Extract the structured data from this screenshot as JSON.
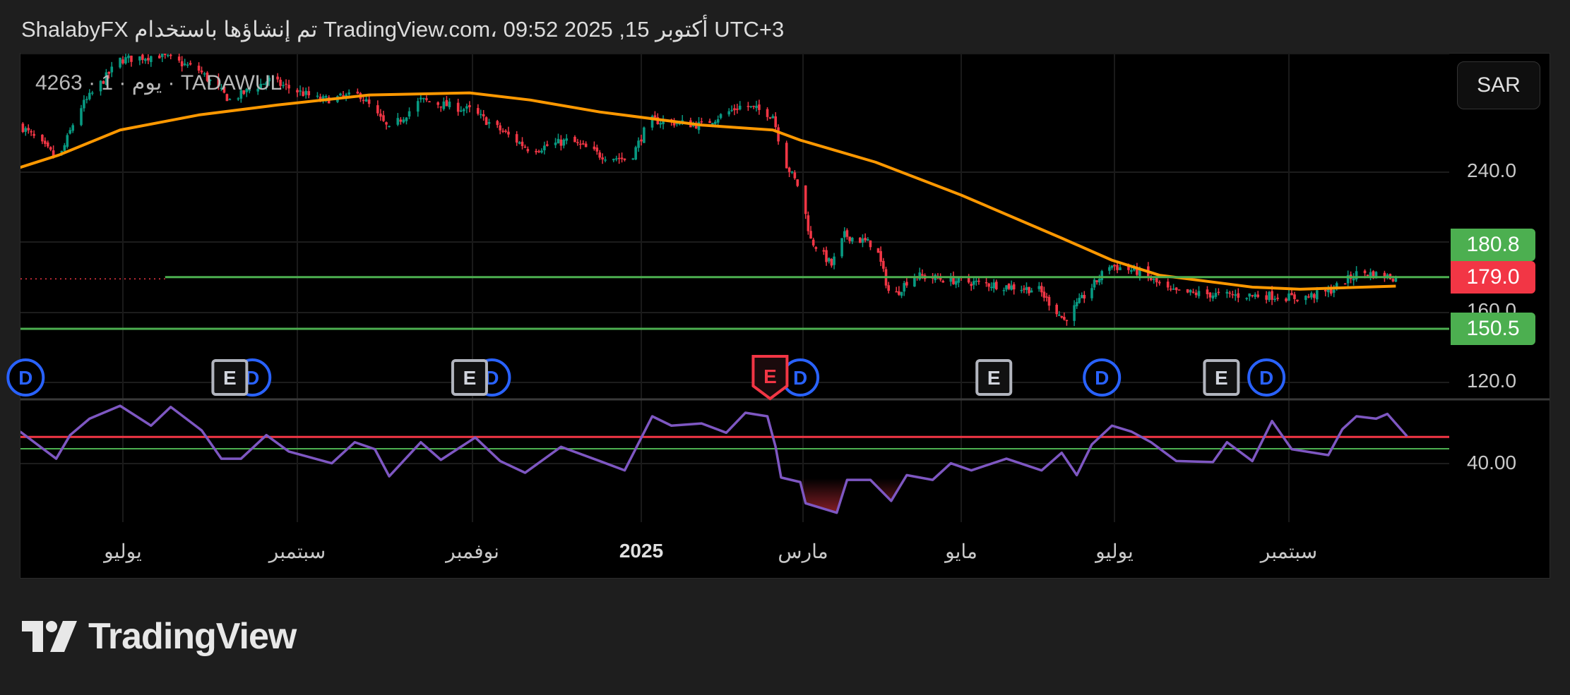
{
  "header": {
    "attribution": "ShalabyFX تم إنشاؤها باستخدام TradingView.com، 09:52 2025 ,15 أكتوبر UTC+3"
  },
  "legend": {
    "symbol_line": "4263 · 1 · يوم · TADAWUL"
  },
  "currency_button": "SAR",
  "brand": {
    "logo_text": "TradingView"
  },
  "colors": {
    "up": "#089981",
    "down": "#f23645",
    "ma": "#ff9800",
    "rsi": "#7e57c2",
    "support": "#4caf50",
    "rsi_upper": "#f23645",
    "rsi_lower": "#4caf50",
    "dividend": "#2962ff",
    "earnings": "#b2b5be"
  },
  "chart_data": {
    "type": "candlestick",
    "price_axis": {
      "ticks": [
        "240.0",
        "160.0",
        "120.0"
      ],
      "range": [
        110,
        308
      ]
    },
    "price_labels": [
      {
        "text": "180.8",
        "value": 180.8,
        "color": "#4caf50"
      },
      {
        "text": "179.0",
        "value": 179.0,
        "color": "#f23645"
      },
      {
        "text": "150.5",
        "value": 150.5,
        "color": "#4caf50"
      }
    ],
    "horizontal_lines": [
      {
        "value": 180.0,
        "color": "#4caf50",
        "from": "2024-07-16"
      },
      {
        "value": 150.5,
        "color": "#4caf50"
      }
    ],
    "x_axis": {
      "labels": [
        {
          "text": "يوليو",
          "date": "2024-07-01"
        },
        {
          "text": "سبتمبر",
          "date": "2024-09-01"
        },
        {
          "text": "نوفمبر",
          "date": "2024-11-01"
        },
        {
          "text": "2025",
          "date": "2025-01-01",
          "bold": true
        },
        {
          "text": "مارس",
          "date": "2025-03-01"
        },
        {
          "text": "مايو",
          "date": "2025-05-01"
        },
        {
          "text": "يوليو",
          "date": "2025-07-01"
        },
        {
          "text": "سبتمبر",
          "date": "2025-09-01"
        }
      ]
    },
    "close": [
      [
        "2024-05-25",
        266.9
      ],
      [
        "2024-06-08",
        246.9
      ],
      [
        "2024-06-15",
        275.5
      ],
      [
        "2024-06-30",
        304.1
      ],
      [
        "2024-07-14",
        306.9
      ],
      [
        "2024-07-28",
        298.3
      ],
      [
        "2024-08-08",
        281.2
      ],
      [
        "2024-08-22",
        292.6
      ],
      [
        "2024-09-09",
        281.2
      ],
      [
        "2024-09-23",
        284.1
      ],
      [
        "2024-10-03",
        264.1
      ],
      [
        "2024-10-14",
        281.2
      ],
      [
        "2024-10-31",
        275.5
      ],
      [
        "2024-11-11",
        264.1
      ],
      [
        "2024-11-22",
        252.6
      ],
      [
        "2024-12-06",
        258.3
      ],
      [
        "2024-12-17",
        249.8
      ],
      [
        "2024-12-28",
        246.9
      ],
      [
        "2025-01-04",
        269.8
      ],
      [
        "2025-01-23",
        266.9
      ],
      [
        "2025-02-07",
        278.4
      ],
      [
        "2025-02-18",
        272.7
      ],
      [
        "2025-02-22",
        246.9
      ],
      [
        "2025-02-28",
        229.8
      ],
      [
        "2025-03-04",
        201.2
      ],
      [
        "2025-03-12",
        186.9
      ],
      [
        "2025-03-17",
        204.0
      ],
      [
        "2025-03-29",
        198.3
      ],
      [
        "2025-04-04",
        166.9
      ],
      [
        "2025-04-12",
        181.1
      ],
      [
        "2025-04-27",
        178.3
      ],
      [
        "2025-05-16",
        175.4
      ],
      [
        "2025-06-01",
        172.6
      ],
      [
        "2025-06-11",
        155.4
      ],
      [
        "2025-06-21",
        172.6
      ],
      [
        "2025-06-29",
        186.9
      ],
      [
        "2025-07-10",
        182.9
      ],
      [
        "2025-07-21",
        171.5
      ],
      [
        "2025-08-09",
        169.7
      ],
      [
        "2025-08-23",
        169.7
      ],
      [
        "2025-09-05",
        168.0
      ],
      [
        "2025-09-15",
        171.5
      ],
      [
        "2025-09-26",
        182.9
      ],
      [
        "2025-10-10",
        179.4
      ]
    ],
    "moving_average": [
      [
        "2024-05-25",
        242.7
      ],
      [
        "2024-06-08",
        249.8
      ],
      [
        "2024-06-30",
        264.1
      ],
      [
        "2024-07-28",
        272.7
      ],
      [
        "2024-08-25",
        278.4
      ],
      [
        "2024-09-26",
        284.1
      ],
      [
        "2024-10-31",
        285.3
      ],
      [
        "2024-11-22",
        281.2
      ],
      [
        "2024-12-17",
        274.4
      ],
      [
        "2025-01-23",
        266.9
      ],
      [
        "2025-02-18",
        264.1
      ],
      [
        "2025-02-28",
        258.3
      ],
      [
        "2025-03-29",
        245.7
      ],
      [
        "2025-05-01",
        226.9
      ],
      [
        "2025-06-10",
        202.3
      ],
      [
        "2025-06-30",
        189.7
      ],
      [
        "2025-07-17",
        181.1
      ],
      [
        "2025-08-19",
        174.3
      ],
      [
        "2025-09-05",
        173.1
      ],
      [
        "2025-10-09",
        174.9
      ]
    ],
    "events": [
      {
        "type": "D",
        "date": "2024-05-27"
      },
      {
        "type": "E",
        "date": "2024-08-08"
      },
      {
        "type": "D",
        "date": "2024-08-16"
      },
      {
        "type": "E",
        "date": "2024-10-31"
      },
      {
        "type": "D",
        "date": "2024-11-08"
      },
      {
        "type": "E",
        "date": "2025-02-17",
        "highlight": true
      },
      {
        "type": "D",
        "date": "2025-02-28"
      },
      {
        "type": "E",
        "date": "2025-05-14"
      },
      {
        "type": "D",
        "date": "2025-06-26"
      },
      {
        "type": "E",
        "date": "2025-08-08"
      },
      {
        "type": "D",
        "date": "2025-08-24"
      }
    ],
    "rsi": {
      "axis_ticks": [
        "40.00"
      ],
      "range": [
        0,
        83
      ],
      "levels": [
        {
          "value": 58,
          "color": "#f23645"
        },
        {
          "value": 50,
          "color": "#4caf50"
        }
      ],
      "values": [
        [
          "2024-05-25",
          61.6
        ],
        [
          "2024-06-07",
          43.3
        ],
        [
          "2024-06-12",
          59.2
        ],
        [
          "2024-06-19",
          70.3
        ],
        [
          "2024-06-30",
          79.0
        ],
        [
          "2024-07-11",
          65.6
        ],
        [
          "2024-07-18",
          78.2
        ],
        [
          "2024-07-29",
          62.4
        ],
        [
          "2024-08-05",
          43.3
        ],
        [
          "2024-08-12",
          43.3
        ],
        [
          "2024-08-21",
          59.2
        ],
        [
          "2024-08-29",
          48.1
        ],
        [
          "2024-09-13",
          40.2
        ],
        [
          "2024-09-21",
          54.4
        ],
        [
          "2024-09-28",
          49.7
        ],
        [
          "2024-10-03",
          31.4
        ],
        [
          "2024-10-14",
          54.4
        ],
        [
          "2024-10-21",
          42.5
        ],
        [
          "2024-11-02",
          57.6
        ],
        [
          "2024-11-11",
          41.7
        ],
        [
          "2024-11-20",
          33.8
        ],
        [
          "2024-12-03",
          51.3
        ],
        [
          "2024-12-17",
          41.7
        ],
        [
          "2024-12-26",
          35.4
        ],
        [
          "2025-01-05",
          71.9
        ],
        [
          "2025-01-12",
          65.6
        ],
        [
          "2025-01-23",
          67.1
        ],
        [
          "2025-02-01",
          60.8
        ],
        [
          "2025-02-08",
          74.3
        ],
        [
          "2025-02-16",
          71.9
        ],
        [
          "2025-02-19",
          51.3
        ],
        [
          "2025-02-21",
          30.6
        ],
        [
          "2025-02-28",
          27.5
        ],
        [
          "2025-03-02",
          13.2
        ],
        [
          "2025-03-14",
          6.8
        ],
        [
          "2025-03-18",
          29.0
        ],
        [
          "2025-03-27",
          29.0
        ],
        [
          "2025-04-04",
          14.8
        ],
        [
          "2025-04-10",
          32.2
        ],
        [
          "2025-04-20",
          29.0
        ],
        [
          "2025-04-27",
          40.2
        ],
        [
          "2025-05-05",
          35.4
        ],
        [
          "2025-05-19",
          43.3
        ],
        [
          "2025-06-02",
          35.4
        ],
        [
          "2025-06-10",
          47.3
        ],
        [
          "2025-06-16",
          32.2
        ],
        [
          "2025-06-22",
          52.9
        ],
        [
          "2025-06-30",
          65.6
        ],
        [
          "2025-07-07",
          61.6
        ],
        [
          "2025-07-14",
          54.4
        ],
        [
          "2025-07-23",
          41.7
        ],
        [
          "2025-08-05",
          41.0
        ],
        [
          "2025-08-10",
          54.4
        ],
        [
          "2025-08-19",
          41.7
        ],
        [
          "2025-08-26",
          68.7
        ],
        [
          "2025-09-02",
          49.7
        ],
        [
          "2025-09-15",
          45.7
        ],
        [
          "2025-09-20",
          63.2
        ],
        [
          "2025-09-25",
          71.9
        ],
        [
          "2025-10-02",
          70.3
        ],
        [
          "2025-10-06",
          73.5
        ],
        [
          "2025-10-13",
          58.4
        ]
      ]
    }
  }
}
